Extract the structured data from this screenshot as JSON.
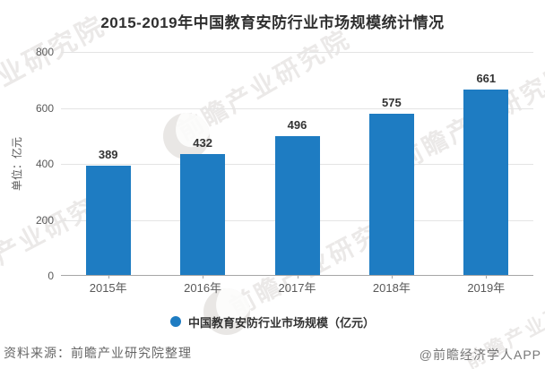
{
  "chart_data": {
    "type": "bar",
    "title": "2015-2019年中国教育安防行业市场规模统计情况",
    "categories": [
      "2015年",
      "2016年",
      "2017年",
      "2018年",
      "2019年"
    ],
    "values": [
      389,
      432,
      496,
      575,
      661
    ],
    "series_name": "中国教育安防行业市场规模（亿元）",
    "ylabel": "单位：亿元",
    "ylim": [
      0,
      800
    ],
    "yticks": [
      800,
      600,
      400,
      200,
      0
    ],
    "grid": true,
    "legend_position": "bottom"
  },
  "legend": {
    "label": "中国教育安防行业市场规模（亿元）"
  },
  "footer": {
    "source": "资料来源：前瞻产业研究院整理",
    "brand": "@前瞻经济学人APP"
  },
  "watermark": {
    "text": "前瞻产业研究院"
  },
  "colors": {
    "bar": "#1e7cc2",
    "legend_dot": "#1e7cc2",
    "grid": "#e4e4e4",
    "axis": "#a6a6a6",
    "title_text": "#2f2f2f",
    "tick_text": "#595959",
    "value_text": "#333333",
    "footer_text": "#666666"
  }
}
